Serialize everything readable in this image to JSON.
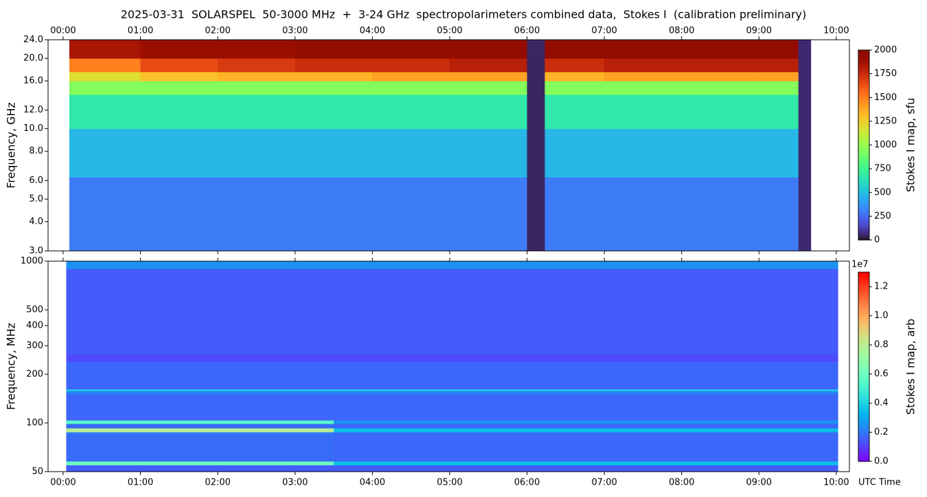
{
  "title": "2025-03-31  SOLARSPEL  50-3000 MHz  +  3-24 GHz  spectropolarimeters combined data,  Stokes I  (calibration preliminary)",
  "chart_data": [
    {
      "type": "heatmap",
      "ylabel": "Frequency, GHz",
      "colorbar_label": "Stokes I map, sfu",
      "colormap": "turbo",
      "log_y": true,
      "xtick_position": "top",
      "x": [
        0.08,
        1,
        2,
        3,
        4,
        5,
        6,
        6.23,
        7,
        8,
        9,
        9.51,
        9.67
      ],
      "y": [
        3,
        6.2,
        10,
        14,
        16,
        17.5,
        20,
        24
      ],
      "values": [
        [
          300,
          300,
          300,
          300,
          300,
          300,
          50,
          300,
          300,
          300,
          300,
          60
        ],
        [
          480,
          480,
          480,
          480,
          480,
          480,
          50,
          480,
          480,
          480,
          480,
          60
        ],
        [
          680,
          680,
          680,
          680,
          680,
          680,
          50,
          680,
          680,
          680,
          680,
          60
        ],
        [
          950,
          950,
          950,
          950,
          950,
          950,
          50,
          950,
          950,
          950,
          950,
          60
        ],
        [
          1200,
          1300,
          1350,
          1350,
          1400,
          1400,
          50,
          1350,
          1400,
          1400,
          1400,
          60
        ],
        [
          1500,
          1650,
          1700,
          1750,
          1750,
          1800,
          50,
          1750,
          1800,
          1800,
          1800,
          60
        ],
        [
          1850,
          1900,
          1900,
          1950,
          1950,
          1950,
          50,
          1950,
          1950,
          1950,
          1950,
          60
        ]
      ],
      "xlim": [
        -0.195,
        10.17
      ],
      "xticks": [
        {
          "value": 0,
          "label": "00:00"
        },
        {
          "value": 1,
          "label": "01:00"
        },
        {
          "value": 2,
          "label": "02:00"
        },
        {
          "value": 3,
          "label": "03:00"
        },
        {
          "value": 4,
          "label": "04:00"
        },
        {
          "value": 5,
          "label": "05:00"
        },
        {
          "value": 6,
          "label": "06:00"
        },
        {
          "value": 7,
          "label": "07:00"
        },
        {
          "value": 8,
          "label": "08:00"
        },
        {
          "value": 9,
          "label": "09:00"
        },
        {
          "value": 10,
          "label": "10:00"
        }
      ],
      "ylim": [
        3,
        24
      ],
      "yticks": [
        {
          "value": 3,
          "label": "3.0"
        },
        {
          "value": 4,
          "label": "4.0"
        },
        {
          "value": 5,
          "label": "5.0"
        },
        {
          "value": 6,
          "label": "6.0"
        },
        {
          "value": 8,
          "label": "8.0"
        },
        {
          "value": 10,
          "label": "10.0"
        },
        {
          "value": 12,
          "label": "12.0"
        },
        {
          "value": 16,
          "label": "16.0"
        },
        {
          "value": 20,
          "label": "20.0"
        },
        {
          "value": 24,
          "label": "24.0"
        }
      ],
      "zlim": [
        0,
        2000
      ],
      "zticks": [
        0,
        250,
        500,
        750,
        1000,
        1250,
        1500,
        1750,
        2000
      ]
    },
    {
      "type": "heatmap",
      "ylabel": "Frequency, MHz",
      "xlabel": "UTC Time",
      "colorbar_label": "Stokes I map, arb",
      "colorbar_offset": "1e7",
      "colormap": "rainbow",
      "log_y": true,
      "xtick_position": "bottom",
      "x": [
        0.04,
        3.5,
        10.02
      ],
      "y": [
        50,
        55,
        58,
        85,
        88,
        93,
        99,
        104,
        150,
        158,
        162,
        240,
        265,
        900,
        1000
      ],
      "values": [
        [
          1500000,
          1500000
        ],
        [
          6000000,
          3500000
        ],
        [
          1800000,
          1700000
        ],
        [
          2000000,
          1800000
        ],
        [
          8000000,
          3500000
        ],
        [
          1800000,
          1700000
        ],
        [
          5500000,
          2500000
        ],
        [
          1700000,
          1700000
        ],
        [
          2200000,
          2200000
        ],
        [
          4000000,
          4000000
        ],
        [
          1700000,
          1700000
        ],
        [
          1200000,
          1200000
        ],
        [
          1500000,
          1500000
        ],
        [
          2500000,
          2500000
        ]
      ],
      "xlim": [
        -0.195,
        10.17
      ],
      "xticks": [
        {
          "value": 0,
          "label": "00:00"
        },
        {
          "value": 1,
          "label": "01:00"
        },
        {
          "value": 2,
          "label": "02:00"
        },
        {
          "value": 3,
          "label": "03:00"
        },
        {
          "value": 4,
          "label": "04:00"
        },
        {
          "value": 5,
          "label": "05:00"
        },
        {
          "value": 6,
          "label": "06:00"
        },
        {
          "value": 7,
          "label": "07:00"
        },
        {
          "value": 8,
          "label": "08:00"
        },
        {
          "value": 9,
          "label": "09:00"
        },
        {
          "value": 10,
          "label": "10:00"
        }
      ],
      "ylim": [
        50,
        1000
      ],
      "yticks": [
        50,
        100,
        200,
        300,
        400,
        500,
        1000
      ],
      "zlim": [
        0,
        13000000
      ],
      "zticks": [
        {
          "value": 0,
          "label": "0.0"
        },
        {
          "value": 2000000,
          "label": "0.2"
        },
        {
          "value": 4000000,
          "label": "0.4"
        },
        {
          "value": 6000000,
          "label": "0.6"
        },
        {
          "value": 8000000,
          "label": "0.8"
        },
        {
          "value": 10000000,
          "label": "1.0"
        },
        {
          "value": 12000000,
          "label": "1.2"
        }
      ]
    }
  ]
}
